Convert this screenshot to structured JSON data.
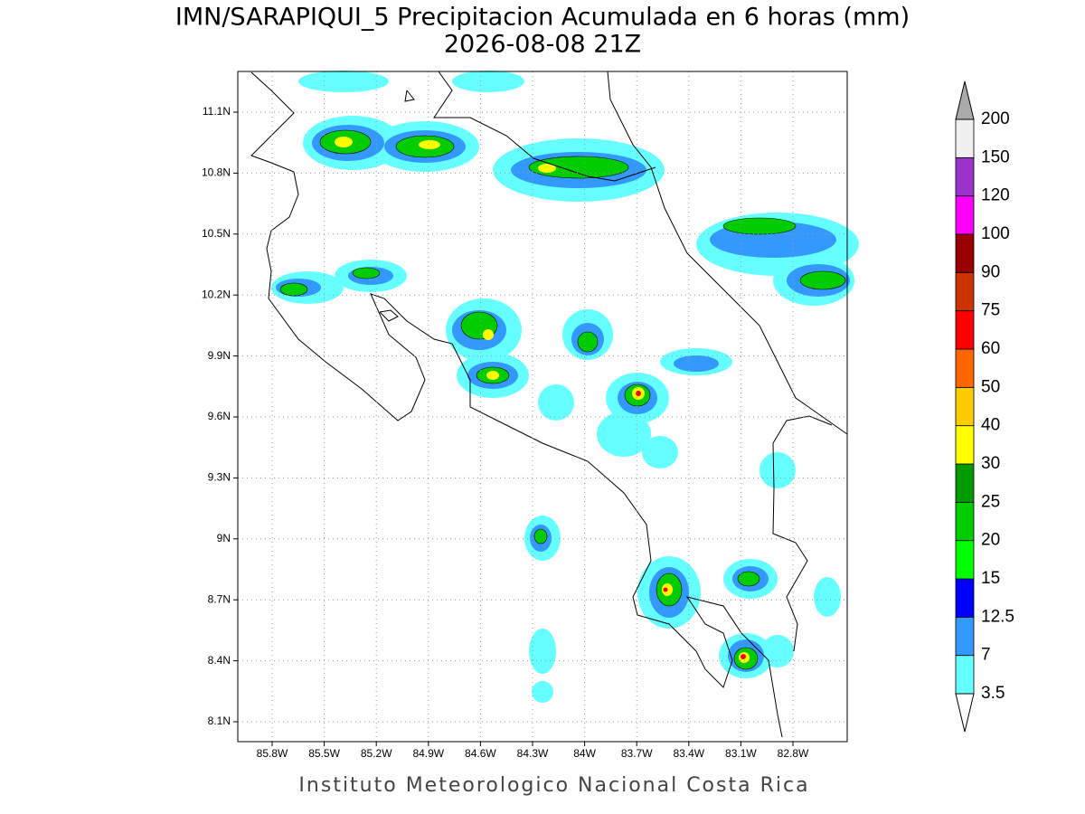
{
  "header": {
    "title": "IMN/SARAPIQUI_5 Precipitacion Acumulada en 6 horas (mm)",
    "subtitle": "2026-08-08 21Z"
  },
  "map": {
    "xticks": [
      "85.8W",
      "85.5W",
      "85.2W",
      "84.9W",
      "84.6W",
      "84.3W",
      "84W",
      "83.7W",
      "83.4W",
      "83.1W",
      "82.8W"
    ],
    "yticks": [
      "11.1N",
      "10.8N",
      "10.5N",
      "10.2N",
      "9.9N",
      "9.6N",
      "9.3N",
      "9N",
      "8.7N",
      "8.4N",
      "8.1N"
    ]
  },
  "colorbar": {
    "levels": [
      3.5,
      7,
      12.5,
      15,
      20,
      25,
      30,
      40,
      50,
      60,
      75,
      90,
      100,
      120,
      150,
      200
    ],
    "colors": [
      "#66ffff",
      "#3399ff",
      "#0000ff",
      "#00ff00",
      "#00cc00",
      "#009900",
      "#ffff00",
      "#ffcc00",
      "#ff6600",
      "#ff0000",
      "#cc3300",
      "#990000",
      "#ff00ff",
      "#9933cc",
      "#f0f0f0"
    ],
    "under_color": "#ffffff",
    "over_color": "#aaaaaa"
  },
  "footer": "Instituto Meteorologico Nacional Costa Rica"
}
